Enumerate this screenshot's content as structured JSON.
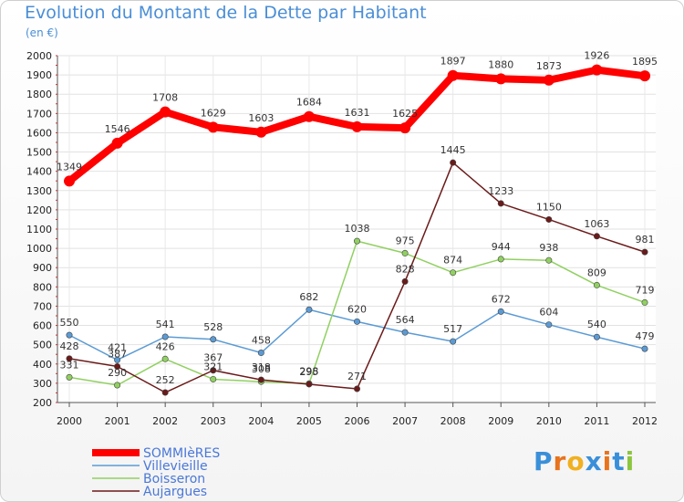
{
  "title": "Evolution du Montant de la Dette par Habitant",
  "unit": "(en €)",
  "logo": "Proxiti",
  "chart_data": {
    "type": "line",
    "title": "Evolution du Montant de la Dette par Habitant",
    "ylabel": "(en €)",
    "x": [
      "2000",
      "2001",
      "2002",
      "2003",
      "2004",
      "2005",
      "2006",
      "2007",
      "2008",
      "2009",
      "2010",
      "2011",
      "2012"
    ],
    "ylim": [
      200,
      2000
    ],
    "yticks": [
      200,
      300,
      400,
      500,
      600,
      700,
      800,
      900,
      1000,
      1100,
      1200,
      1300,
      1400,
      1500,
      1600,
      1700,
      1800,
      1900,
      2000
    ],
    "grid": true,
    "legend_position": "bottom-left",
    "series": [
      {
        "name": "SOMMIèRES",
        "color": "#ff0000",
        "values": [
          1349,
          1546,
          1708,
          1629,
          1603,
          1684,
          1631,
          1625,
          1897,
          1880,
          1873,
          1926,
          1895
        ]
      },
      {
        "name": "Villevieille",
        "color": "#5b9bd5",
        "values": [
          550,
          421,
          541,
          528,
          458,
          682,
          620,
          564,
          517,
          672,
          604,
          540,
          479
        ]
      },
      {
        "name": "Boisseron",
        "color": "#90d060",
        "values": [
          331,
          290,
          426,
          321,
          308,
          298,
          1038,
          975,
          874,
          944,
          938,
          809,
          719
        ]
      },
      {
        "name": "Aujargues",
        "color": "#6b1a1a",
        "values": [
          428,
          387,
          252,
          367,
          318,
          295,
          271,
          828,
          1445,
          1233,
          1150,
          1063,
          981
        ]
      }
    ]
  }
}
